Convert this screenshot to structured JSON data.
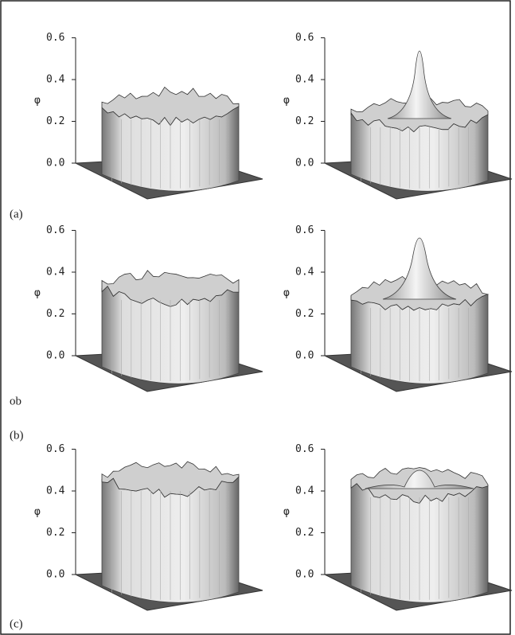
{
  "figure": {
    "panels": [
      {
        "label": "(a)",
        "plots": [
          {
            "ylabel": "φ",
            "yticks": [
              {
                "value": 0,
                "label": "0.0"
              },
              {
                "value": 0.2,
                "label": "0.2"
              },
              {
                "value": 0.4,
                "label": "0.4"
              },
              {
                "value": 0.6,
                "label": "0.6"
              }
            ]
          },
          {
            "ylabel": "φ",
            "yticks": [
              {
                "value": 0,
                "label": "0.0"
              },
              {
                "value": 0.2,
                "label": "0.2"
              },
              {
                "value": 0.4,
                "label": "0.4"
              },
              {
                "value": 0.6,
                "label": "0.6"
              }
            ]
          }
        ]
      },
      {
        "label": "(b)",
        "plots": [
          {
            "ylabel": "φ",
            "yticks": [
              {
                "value": 0,
                "label": "0.0"
              },
              {
                "value": 0.2,
                "label": "0.2"
              },
              {
                "value": 0.4,
                "label": "0.4"
              },
              {
                "value": 0.6,
                "label": "0.6"
              }
            ]
          },
          {
            "ylabel": "φ",
            "yticks": [
              {
                "value": 0,
                "label": "0.0"
              },
              {
                "value": 0.2,
                "label": "0.2"
              },
              {
                "value": 0.4,
                "label": "0.4"
              },
              {
                "value": 0.6,
                "label": "0.6"
              }
            ]
          }
        ]
      },
      {
        "label": "(c)",
        "plots": [
          {
            "ylabel": "φ",
            "yticks": [
              {
                "value": 0,
                "label": "0.0"
              },
              {
                "value": 0.2,
                "label": "0.2"
              },
              {
                "value": 0.4,
                "label": "0.4"
              },
              {
                "value": 0.6,
                "label": "0.6"
              }
            ]
          },
          {
            "ylabel": "φ",
            "yticks": [
              {
                "value": 0,
                "label": "0.0"
              },
              {
                "value": 0.2,
                "label": "0.2"
              },
              {
                "value": 0.4,
                "label": "0.4"
              },
              {
                "value": 0.6,
                "label": "0.6"
              }
            ]
          }
        ]
      }
    ],
    "note": "ob"
  }
}
